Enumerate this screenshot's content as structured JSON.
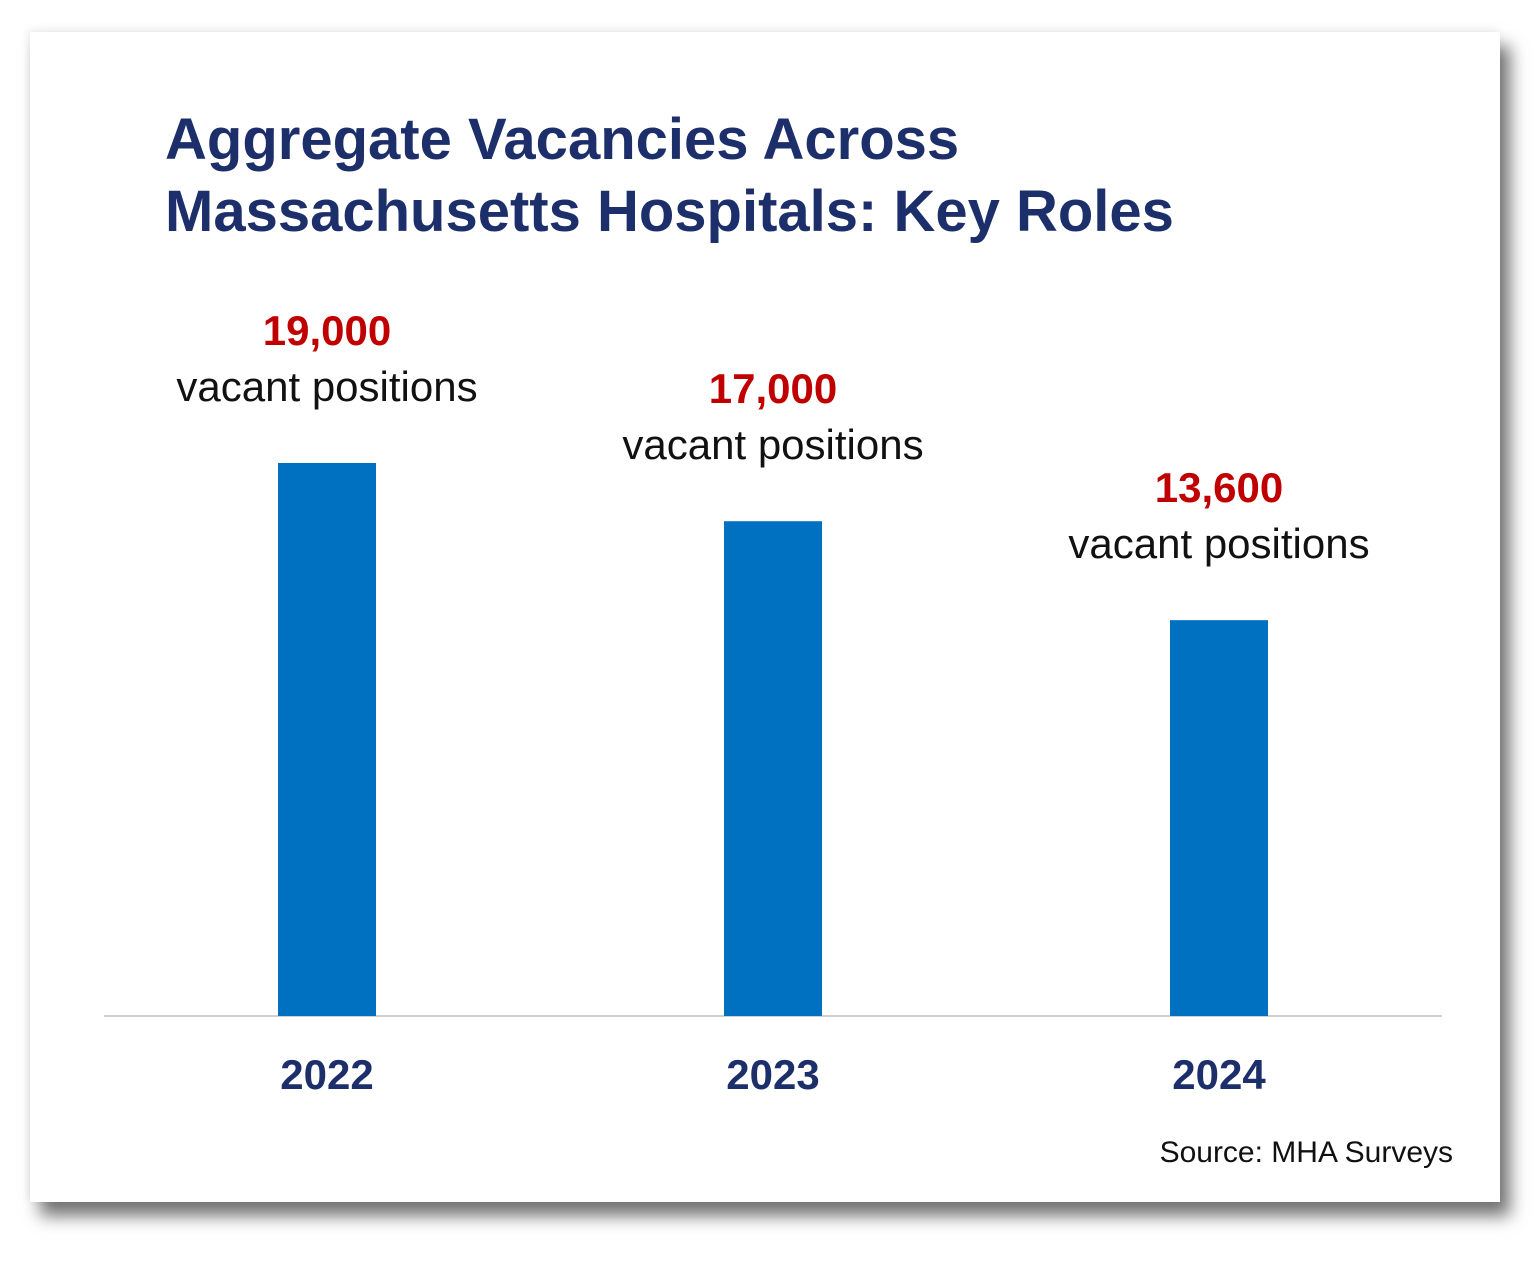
{
  "title_lines": [
    "Aggregate Vacancies Across",
    "Massachusetts Hospitals: Key Roles"
  ],
  "source": "Source: MHA Surveys",
  "colors": {
    "title": "#1c2f6b",
    "bar": "#0070c0",
    "value_label": "#c00000",
    "sub_label": "#111111",
    "axis": "#d0d0d0"
  },
  "chart_data": {
    "type": "bar",
    "title": "Aggregate Vacancies Across Massachusetts Hospitals: Key Roles",
    "categories": [
      "2022",
      "2023",
      "2024"
    ],
    "values": [
      19000,
      17000,
      13600
    ],
    "data_labels": [
      "19,000",
      "17,000",
      "13,600"
    ],
    "data_label_suffix": "vacant positions",
    "xlabel": "",
    "ylabel": "",
    "grid": false,
    "legend": "none"
  }
}
